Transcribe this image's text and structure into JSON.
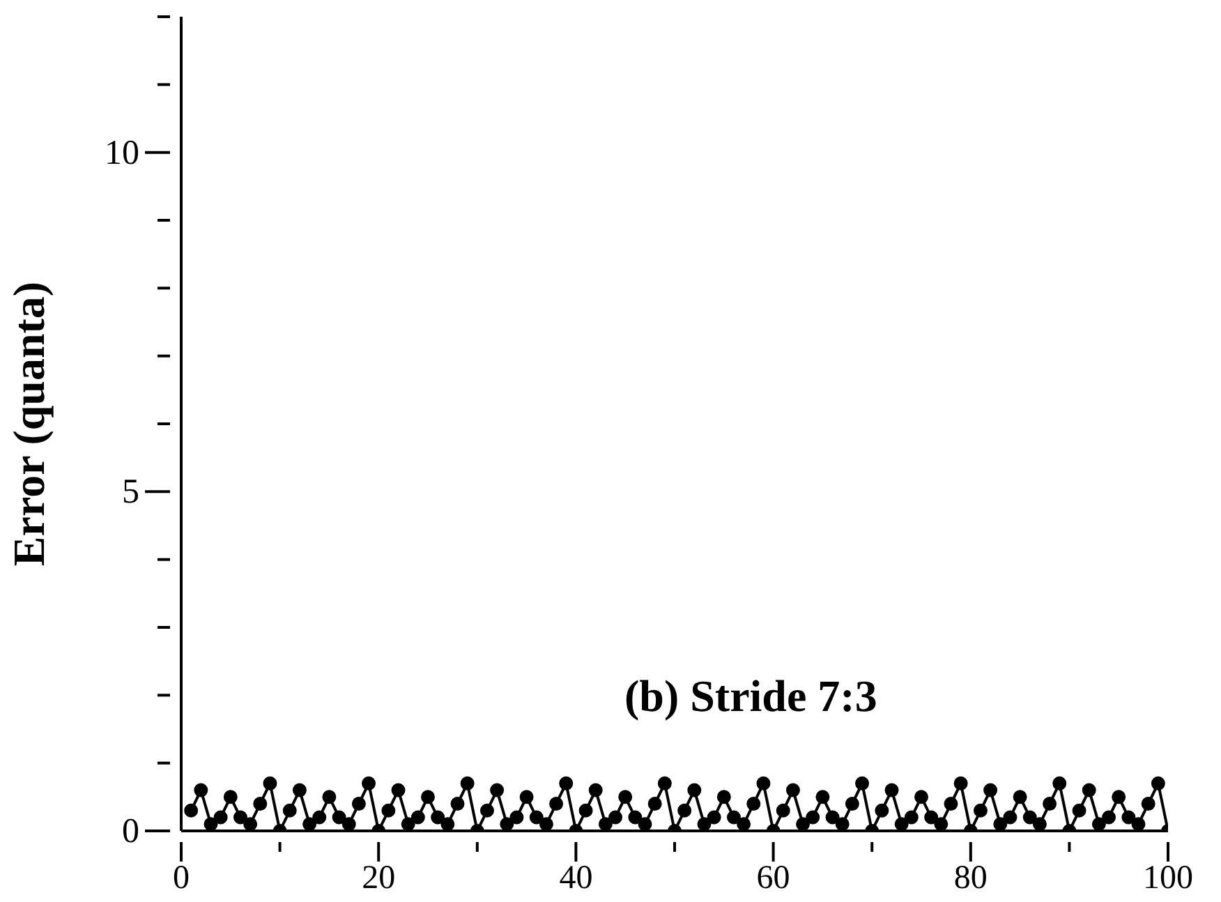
{
  "chart_data": {
    "type": "line",
    "ylabel": "Error (quanta)",
    "annotations": [
      "(b) Stride 7:3"
    ],
    "x": [
      1,
      2,
      3,
      4,
      5,
      6,
      7,
      8,
      9,
      10,
      11,
      12,
      13,
      14,
      15,
      16,
      17,
      18,
      19,
      20,
      21,
      22,
      23,
      24,
      25,
      26,
      27,
      28,
      29,
      30,
      31,
      32,
      33,
      34,
      35,
      36,
      37,
      38,
      39,
      40,
      41,
      42,
      43,
      44,
      45,
      46,
      47,
      48,
      49,
      50,
      51,
      52,
      53,
      54,
      55,
      56,
      57,
      58,
      59,
      60,
      61,
      62,
      63,
      64,
      65,
      66,
      67,
      68,
      69,
      70,
      71,
      72,
      73,
      74,
      75,
      76,
      77,
      78,
      79,
      80,
      81,
      82,
      83,
      84,
      85,
      86,
      87,
      88,
      89,
      90,
      91,
      92,
      93,
      94,
      95,
      96,
      97,
      98,
      99,
      100
    ],
    "series": [
      {
        "color": "#000000",
        "values": [
          0.3,
          0.6,
          0.1,
          0.2,
          0.5,
          0.2,
          0.1,
          0.4,
          0.7,
          0,
          0.3,
          0.6,
          0.1,
          0.2,
          0.5,
          0.2,
          0.1,
          0.4,
          0.7,
          0,
          0.3,
          0.6,
          0.1,
          0.2,
          0.5,
          0.2,
          0.1,
          0.4,
          0.7,
          0,
          0.3,
          0.6,
          0.1,
          0.2,
          0.5,
          0.2,
          0.1,
          0.4,
          0.7,
          0,
          0.3,
          0.6,
          0.1,
          0.2,
          0.5,
          0.2,
          0.1,
          0.4,
          0.7,
          0,
          0.3,
          0.6,
          0.1,
          0.2,
          0.5,
          0.2,
          0.1,
          0.4,
          0.7,
          0,
          0.3,
          0.6,
          0.1,
          0.2,
          0.5,
          0.2,
          0.1,
          0.4,
          0.7,
          0,
          0.3,
          0.6,
          0.1,
          0.2,
          0.5,
          0.2,
          0.1,
          0.4,
          0.7,
          0,
          0.3,
          0.6,
          0.1,
          0.2,
          0.5,
          0.2,
          0.1,
          0.4,
          0.7,
          0,
          0.3,
          0.6,
          0.1,
          0.2,
          0.5,
          0.2,
          0.1,
          0.4,
          0.7,
          0
        ]
      }
    ],
    "xlim": [
      0,
      100
    ],
    "ylim": [
      0,
      12
    ],
    "xticks": [
      0,
      {
        "value": 10,
        "label": null
      },
      20,
      {
        "value": 30,
        "label": null
      },
      40,
      {
        "value": 50,
        "label": null
      },
      60,
      {
        "value": 70,
        "label": null
      },
      80,
      {
        "value": 90,
        "label": null
      },
      100
    ],
    "yticks": [
      0,
      {
        "value": 1,
        "label": null
      },
      {
        "value": 2,
        "label": null
      },
      {
        "value": 3,
        "label": null
      },
      {
        "value": 4,
        "label": null
      },
      5,
      {
        "value": 6,
        "label": null
      },
      {
        "value": 7,
        "label": null
      },
      {
        "value": 8,
        "label": null
      },
      {
        "value": 9,
        "label": null
      },
      10,
      {
        "value": 11,
        "label": null
      },
      {
        "value": 12,
        "label": null
      }
    ],
    "grid": false,
    "legend": false,
    "marker": "circle",
    "line_style": "solid"
  }
}
